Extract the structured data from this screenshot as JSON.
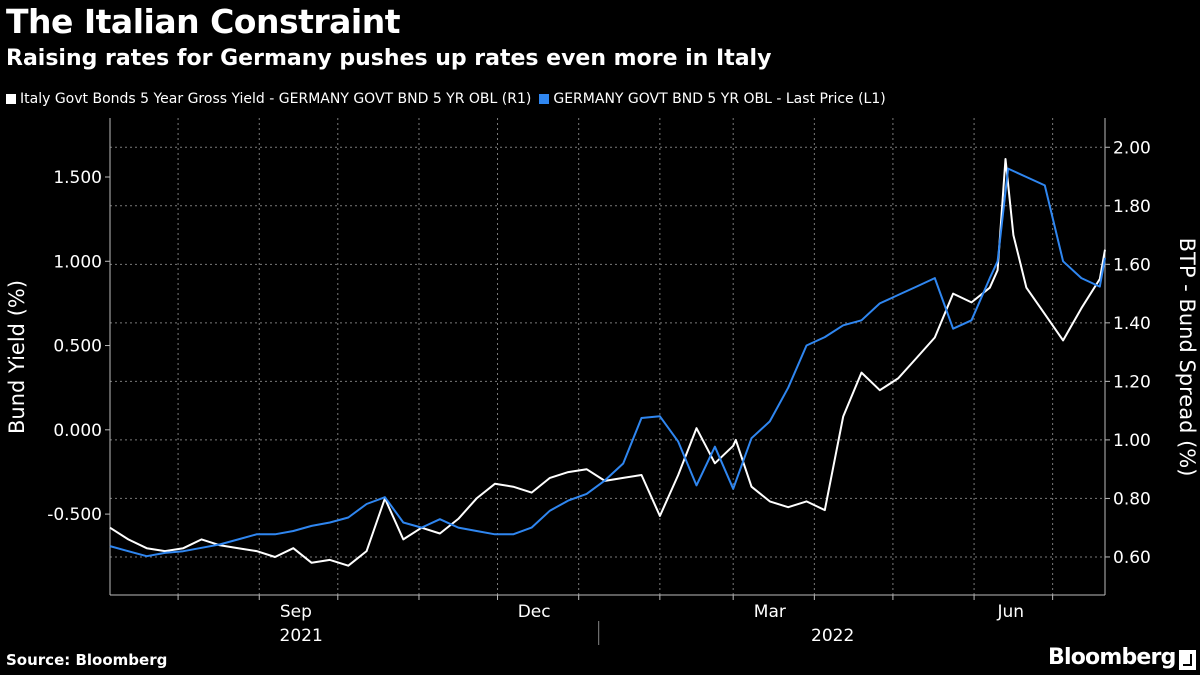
{
  "header": {
    "title": "The Italian Constraint",
    "subtitle": "Raising rates for Germany pushes up rates even more in Italy"
  },
  "footer": {
    "source": "Source: Bloomberg",
    "brand": "Bloomberg"
  },
  "colors": {
    "background": "#000000",
    "italy_series": "#ffffff",
    "germany_series": "#2f86f0",
    "grid": "#7a7a7a"
  },
  "chart_data": {
    "type": "line",
    "legend_placement": "top-left",
    "grid": true,
    "left_axis": {
      "label": "Bund Yield (%)",
      "ticks": [
        -0.5,
        0.0,
        0.5,
        1.0,
        1.5
      ],
      "tick_labels": [
        "-0.500",
        "0.000",
        "0.500",
        "1.000",
        "1.500"
      ],
      "range": [
        -0.98,
        1.85
      ]
    },
    "right_axis": {
      "label": "BTP - Bund Spread (%)",
      "ticks": [
        0.6,
        0.8,
        1.0,
        1.2,
        1.4,
        1.6,
        1.8,
        2.0
      ],
      "tick_labels": [
        "0.60",
        "0.80",
        "1.00",
        "1.20",
        "1.40",
        "1.60",
        "1.80",
        "2.00"
      ],
      "range": [
        0.47,
        2.1
      ]
    },
    "x_axis": {
      "range": [
        "2021-07-06",
        "2022-07-21"
      ],
      "month_ticks": [
        "2021-08-01",
        "2021-09-01",
        "2021-10-01",
        "2021-11-01",
        "2021-12-01",
        "2022-01-01",
        "2022-02-01",
        "2022-03-01",
        "2022-04-01",
        "2022-05-01",
        "2022-06-01",
        "2022-07-01"
      ],
      "month_labels": [
        {
          "date": "2021-09-15",
          "label": "Sep"
        },
        {
          "date": "2021-12-15",
          "label": "Dec"
        },
        {
          "date": "2022-03-15",
          "label": "Mar"
        },
        {
          "date": "2022-06-15",
          "label": "Jun"
        }
      ],
      "year_labels": [
        {
          "date": "2021-09-17",
          "label": "2021"
        },
        {
          "date": "2022-04-08",
          "label": "2022"
        }
      ],
      "year_divider": "2022-01-01"
    },
    "series": [
      {
        "name": "Italy Govt Bonds 5 Year Gross Yield - GERMANY GOVT BND 5 YR OBL (R1)",
        "axis": "right",
        "color": "#ffffff",
        "x": [
          "2021-07-06",
          "2021-07-13",
          "2021-07-20",
          "2021-07-27",
          "2021-08-03",
          "2021-08-10",
          "2021-08-17",
          "2021-08-24",
          "2021-08-31",
          "2021-09-07",
          "2021-09-14",
          "2021-09-21",
          "2021-09-28",
          "2021-10-05",
          "2021-10-12",
          "2021-10-19",
          "2021-10-26",
          "2021-11-02",
          "2021-11-09",
          "2021-11-16",
          "2021-11-23",
          "2021-11-30",
          "2021-12-07",
          "2021-12-14",
          "2021-12-21",
          "2021-12-28",
          "2022-01-04",
          "2022-01-11",
          "2022-01-18",
          "2022-01-25",
          "2022-02-01",
          "2022-02-08",
          "2022-02-15",
          "2022-02-22",
          "2022-03-01",
          "2022-03-02",
          "2022-03-08",
          "2022-03-15",
          "2022-03-22",
          "2022-03-29",
          "2022-04-05",
          "2022-04-12",
          "2022-04-19",
          "2022-04-26",
          "2022-05-03",
          "2022-05-10",
          "2022-05-17",
          "2022-05-24",
          "2022-05-31",
          "2022-06-07",
          "2022-06-10",
          "2022-06-13",
          "2022-06-16",
          "2022-06-21",
          "2022-06-28",
          "2022-07-05",
          "2022-07-12",
          "2022-07-19",
          "2022-07-21"
        ],
        "values": [
          0.7,
          0.66,
          0.63,
          0.62,
          0.63,
          0.66,
          0.64,
          0.63,
          0.62,
          0.6,
          0.63,
          0.58,
          0.59,
          0.57,
          0.62,
          0.8,
          0.66,
          0.7,
          0.68,
          0.73,
          0.8,
          0.85,
          0.84,
          0.82,
          0.87,
          0.89,
          0.9,
          0.86,
          0.87,
          0.88,
          0.74,
          0.88,
          1.04,
          0.92,
          0.98,
          1.0,
          0.84,
          0.79,
          0.77,
          0.79,
          0.76,
          1.08,
          1.23,
          1.17,
          1.21,
          1.28,
          1.35,
          1.5,
          1.47,
          1.52,
          1.58,
          1.96,
          1.7,
          1.52,
          1.43,
          1.34,
          1.45,
          1.55,
          1.65
        ]
      },
      {
        "name": "GERMANY GOVT BND 5 YR OBL - Last Price (L1)",
        "axis": "left",
        "color": "#2f86f0",
        "x": [
          "2021-07-06",
          "2021-07-13",
          "2021-07-20",
          "2021-07-27",
          "2021-08-03",
          "2021-08-10",
          "2021-08-17",
          "2021-08-24",
          "2021-08-31",
          "2021-09-07",
          "2021-09-14",
          "2021-09-21",
          "2021-09-28",
          "2021-10-05",
          "2021-10-12",
          "2021-10-19",
          "2021-10-26",
          "2021-11-02",
          "2021-11-09",
          "2021-11-16",
          "2021-11-23",
          "2021-11-30",
          "2021-12-07",
          "2021-12-14",
          "2021-12-21",
          "2021-12-28",
          "2022-01-04",
          "2022-01-11",
          "2022-01-18",
          "2022-01-25",
          "2022-02-01",
          "2022-02-08",
          "2022-02-15",
          "2022-02-22",
          "2022-03-01",
          "2022-03-08",
          "2022-03-15",
          "2022-03-22",
          "2022-03-29",
          "2022-04-05",
          "2022-04-12",
          "2022-04-19",
          "2022-04-26",
          "2022-05-03",
          "2022-05-10",
          "2022-05-17",
          "2022-05-24",
          "2022-05-31",
          "2022-06-07",
          "2022-06-10",
          "2022-06-14",
          "2022-06-21",
          "2022-06-28",
          "2022-07-05",
          "2022-07-12",
          "2022-07-19",
          "2022-07-21"
        ],
        "values": [
          -0.69,
          -0.72,
          -0.75,
          -0.73,
          -0.72,
          -0.7,
          -0.68,
          -0.65,
          -0.62,
          -0.62,
          -0.6,
          -0.57,
          -0.55,
          -0.52,
          -0.44,
          -0.4,
          -0.55,
          -0.58,
          -0.53,
          -0.58,
          -0.6,
          -0.62,
          -0.62,
          -0.58,
          -0.48,
          -0.42,
          -0.38,
          -0.3,
          -0.2,
          0.07,
          0.08,
          -0.07,
          -0.33,
          -0.1,
          -0.35,
          -0.05,
          0.05,
          0.25,
          0.5,
          0.55,
          0.62,
          0.65,
          0.75,
          0.8,
          0.85,
          0.9,
          0.6,
          0.65,
          0.9,
          1.0,
          1.55,
          1.5,
          1.45,
          1.0,
          0.9,
          0.85,
          1.02
        ]
      }
    ]
  }
}
